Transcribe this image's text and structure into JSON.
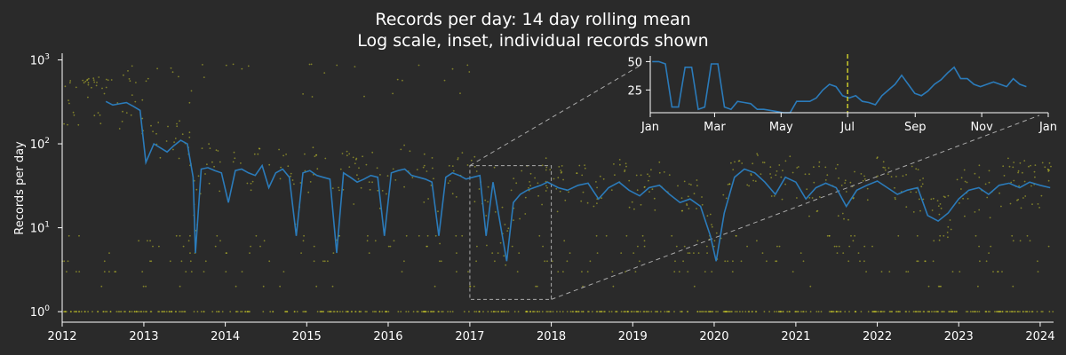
{
  "chart_data": {
    "type": "line",
    "title": "Records per day: 14 day rolling mean",
    "subtitle": "Log scale, inset, individual records shown",
    "ylabel": "Records per day",
    "xlabel": "",
    "y_scale": "log",
    "ylim": [
      0.75,
      1200
    ],
    "xlim": [
      "2012-01-01",
      "2024-03-01"
    ],
    "x_ticks": [
      "2012",
      "2013",
      "2014",
      "2015",
      "2016",
      "2017",
      "2018",
      "2019",
      "2020",
      "2021",
      "2022",
      "2023",
      "2024"
    ],
    "y_ticks": [
      {
        "value": 1,
        "base": "10",
        "exp": "0"
      },
      {
        "value": 10,
        "base": "10",
        "exp": "1"
      },
      {
        "value": 100,
        "base": "10",
        "exp": "2"
      },
      {
        "value": 1000,
        "base": "10",
        "exp": "3"
      }
    ],
    "grid": false,
    "colors": {
      "background": "#2a2a2a",
      "line": "#2b7bba",
      "points": "#c8c82a",
      "zoom": "#aaaaaa",
      "axis": "#ffffff",
      "marker": "#c8c82a"
    },
    "series": [
      {
        "kind": "rolling_mean",
        "x": [
          "2012-07-15",
          "2012-08-15",
          "2012-09-15",
          "2012-10-15",
          "2012-11-15",
          "2012-12-15",
          "2013-01-10",
          "2013-02-15",
          "2013-03-15",
          "2013-04-15",
          "2013-05-15",
          "2013-06-15",
          "2013-07-15",
          "2013-08-10",
          "2013-08-20",
          "2013-09-15",
          "2013-10-15",
          "2013-11-15",
          "2013-12-15",
          "2014-01-15",
          "2014-02-15",
          "2014-03-15",
          "2014-04-15",
          "2014-05-15",
          "2014-06-15",
          "2014-07-15",
          "2014-08-15",
          "2014-09-15",
          "2014-10-15",
          "2014-11-15",
          "2014-12-15",
          "2015-01-15",
          "2015-02-15",
          "2015-03-15",
          "2015-04-15",
          "2015-05-15",
          "2015-06-15",
          "2015-07-15",
          "2015-08-15",
          "2015-09-15",
          "2015-10-15",
          "2015-11-15",
          "2015-12-15",
          "2016-01-15",
          "2016-02-15",
          "2016-03-15",
          "2016-04-15",
          "2016-05-15",
          "2016-06-15",
          "2016-07-15",
          "2016-08-15",
          "2016-09-15",
          "2016-10-15",
          "2016-11-15",
          "2016-12-15",
          "2017-01-15",
          "2017-02-15",
          "2017-03-15",
          "2017-04-15",
          "2017-05-15",
          "2017-06-15",
          "2017-07-15",
          "2017-08-15",
          "2017-09-15",
          "2017-10-15",
          "2017-11-15",
          "2017-12-15",
          "2018-02-01",
          "2018-03-15",
          "2018-05-01",
          "2018-06-15",
          "2018-08-01",
          "2018-09-15",
          "2018-11-01",
          "2018-12-15",
          "2019-02-01",
          "2019-03-15",
          "2019-05-01",
          "2019-06-15",
          "2019-08-01",
          "2019-09-15",
          "2019-11-01",
          "2019-12-15",
          "2020-01-10",
          "2020-02-15",
          "2020-04-01",
          "2020-05-15",
          "2020-07-01",
          "2020-08-15",
          "2020-10-01",
          "2020-11-15",
          "2021-01-01",
          "2021-02-15",
          "2021-04-01",
          "2021-05-15",
          "2021-07-01",
          "2021-08-15",
          "2021-10-01",
          "2021-11-15",
          "2022-01-01",
          "2022-02-15",
          "2022-04-01",
          "2022-05-15",
          "2022-07-01",
          "2022-08-15",
          "2022-10-01",
          "2022-11-15",
          "2023-01-01",
          "2023-02-15",
          "2023-04-01",
          "2023-05-15",
          "2023-07-01",
          "2023-08-15",
          "2023-10-01",
          "2023-11-15",
          "2024-01-01",
          "2024-02-15"
        ],
        "values": [
          320,
          290,
          300,
          310,
          280,
          250,
          60,
          100,
          90,
          80,
          95,
          110,
          100,
          40,
          5,
          50,
          52,
          48,
          45,
          20,
          48,
          50,
          45,
          42,
          55,
          30,
          45,
          50,
          40,
          8,
          45,
          48,
          42,
          40,
          38,
          5,
          45,
          40,
          35,
          38,
          42,
          40,
          8,
          45,
          48,
          50,
          42,
          40,
          38,
          35,
          8,
          40,
          45,
          42,
          38,
          40,
          42,
          8,
          35,
          12,
          4,
          20,
          25,
          28,
          30,
          32,
          35,
          30,
          28,
          32,
          34,
          22,
          30,
          35,
          28,
          24,
          30,
          32,
          25,
          20,
          22,
          18,
          8,
          4,
          15,
          40,
          50,
          45,
          35,
          25,
          40,
          35,
          22,
          30,
          34,
          30,
          18,
          28,
          32,
          36,
          30,
          25,
          28,
          30,
          14,
          12,
          15,
          22,
          28,
          30,
          25,
          32,
          34,
          30,
          35,
          32,
          30
        ]
      }
    ],
    "inset": {
      "zoom_range": [
        "2017-01-01",
        "2018-01-01"
      ],
      "x_ticks": [
        "Jan",
        "Mar",
        "May",
        "Jul",
        "Sep",
        "Nov",
        "Jan"
      ],
      "y_ticks": [
        25,
        50
      ],
      "ylim": [
        5,
        55
      ],
      "marker_date": "Jul",
      "values": [
        50,
        50,
        48,
        10,
        10,
        45,
        45,
        8,
        10,
        48,
        48,
        10,
        8,
        15,
        14,
        13,
        8,
        8,
        7,
        6,
        5,
        5,
        15,
        15,
        15,
        18,
        25,
        30,
        28,
        20,
        18,
        20,
        15,
        14,
        12,
        20,
        25,
        30,
        38,
        30,
        22,
        20,
        24,
        30,
        34,
        40,
        45,
        35,
        35,
        30,
        28,
        30,
        32,
        30,
        28,
        35,
        30,
        28
      ]
    }
  }
}
